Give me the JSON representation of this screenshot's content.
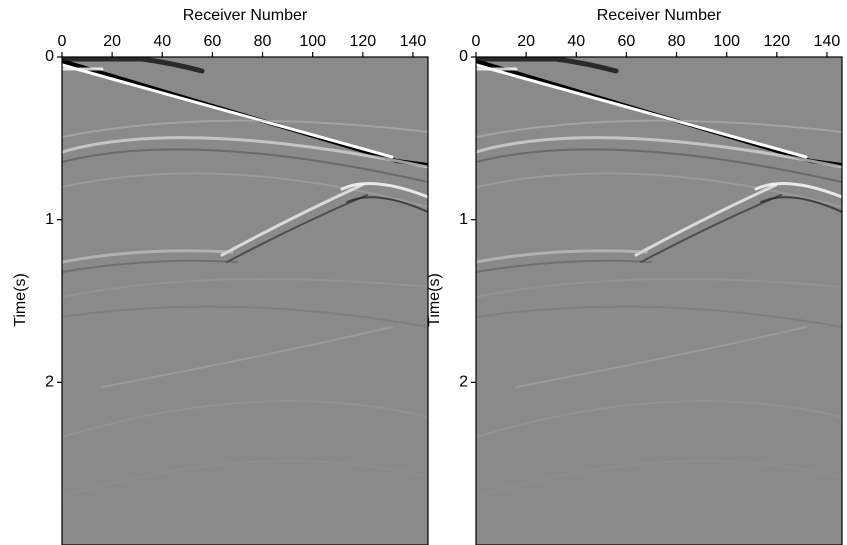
{
  "chart_data": [
    {
      "type": "heatmap",
      "xlabel": "Receiver Number",
      "ylabel": "Time(s)",
      "xlim": [
        0,
        146
      ],
      "xticks": [
        0,
        20,
        40,
        60,
        80,
        100,
        120,
        140
      ],
      "ylim": [
        0,
        3
      ],
      "yticks": [
        0,
        1,
        2
      ],
      "y_inverted": true,
      "x_axis_position": "top"
    },
    {
      "type": "heatmap",
      "xlabel": "Receiver Number",
      "ylabel": "Time(s)",
      "xlim": [
        0,
        146
      ],
      "xticks": [
        0,
        20,
        40,
        60,
        80,
        100,
        120,
        140
      ],
      "ylim": [
        0,
        3
      ],
      "yticks": [
        0,
        1,
        2
      ],
      "y_inverted": true,
      "x_axis_position": "top"
    }
  ]
}
